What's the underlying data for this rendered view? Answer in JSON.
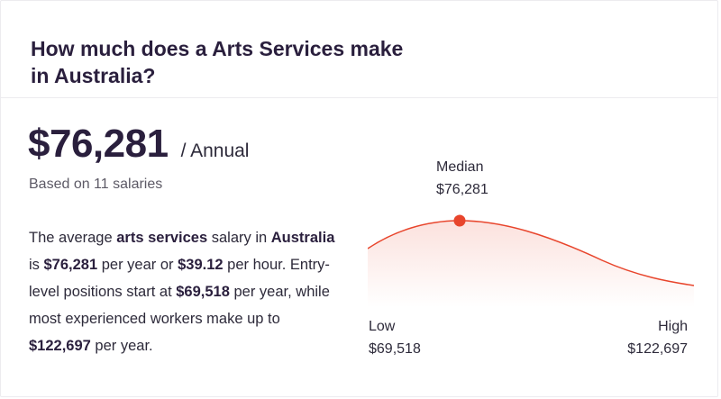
{
  "header": {
    "title": "How much does a Arts Services make in Australia?"
  },
  "salary": {
    "amount": "$76,281",
    "period": "/ Annual",
    "based_on": "Based on 11 salaries"
  },
  "description": {
    "t1": "The average ",
    "b1": "arts services",
    "t2": " salary in ",
    "b2": "Australia",
    "t3": " is ",
    "b3": "$76,281",
    "t4": " per year or ",
    "b4": "$39.12",
    "t5": " per hour. Entry-level positions start at ",
    "b5": "$69,518",
    "t6": " per year, while most experienced workers make up to ",
    "b6": "$122,697",
    "t7": " per year."
  },
  "distribution": {
    "median_label": "Median",
    "median_value": "$76,281",
    "low_label": "Low",
    "low_value": "$69,518",
    "high_label": "High",
    "high_value": "$122,697",
    "accent_color": "#e8452c"
  }
}
